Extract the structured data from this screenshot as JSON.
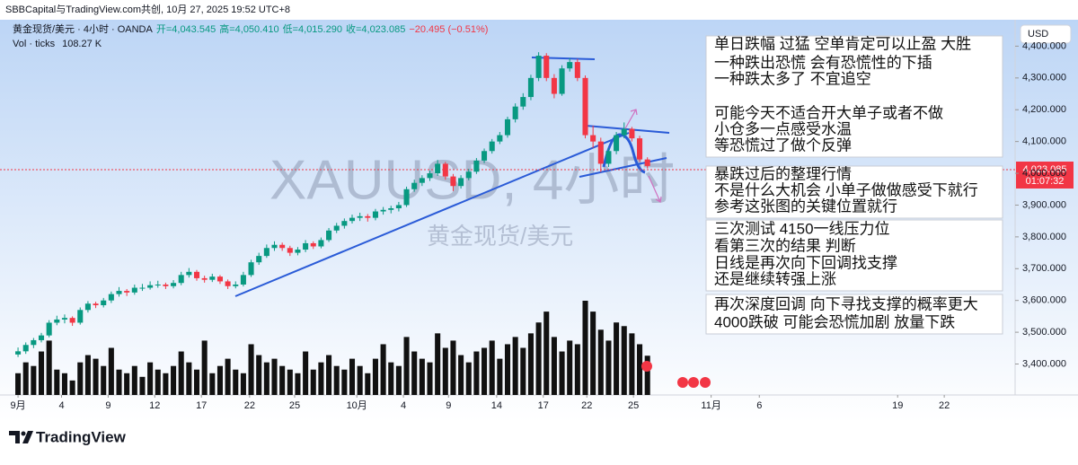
{
  "chart_data": {
    "type": "candlestick",
    "header": {
      "source": "SBBCapital与TradingView.com共创, 10月 27, 2025 19:52 UTC+8",
      "symbol": "黄金现货/美元 · 4小时 · OANDA",
      "open_label": "开=4,043.545",
      "high_label": "高=4,050.410",
      "low_label": "低=4,015.290",
      "close_label": "收=4,023.085",
      "change_label": "−20.495 (−0.51%)",
      "volume_name": "Vol · ticks",
      "volume_label": "108.27 K"
    },
    "watermark": "XAUUSD, 4小时",
    "watermark_sub": "黄金现货/美元",
    "currency": "USD",
    "last_price_label": "4,023.085",
    "countdown": "01:07:32",
    "brand": "TradingView",
    "up_color": "#089981",
    "down_color": "#f23645",
    "volume_color": "#111111",
    "grid": false,
    "x": [
      0,
      0.5,
      1,
      1.5,
      2,
      2.5,
      3,
      3.5,
      4,
      4.5,
      5,
      5.5,
      6,
      6.5,
      7,
      7.5,
      8,
      8.5,
      9,
      9.5,
      10,
      10.5,
      11,
      11.5,
      12,
      12.5,
      13,
      13.5,
      14,
      14.5,
      15,
      15.5,
      16,
      16.5,
      17,
      17.5,
      18,
      18.5,
      19,
      19.5,
      20,
      20.5,
      21,
      21.5,
      22,
      22.5,
      23,
      23.5,
      24,
      24.5,
      25,
      25.5,
      26,
      26.5,
      27,
      27.5,
      28,
      28.5,
      29,
      29.5,
      30,
      30.5,
      31,
      31.5,
      32,
      32.5,
      33,
      33.5,
      34,
      34.5,
      35,
      35.5,
      36,
      36.5,
      37,
      37.5,
      38,
      38.5,
      39,
      39.5,
      40,
      40.5
    ],
    "ohlc": [
      [
        3430,
        3452,
        3422,
        3440
      ],
      [
        3440,
        3468,
        3432,
        3460
      ],
      [
        3460,
        3482,
        3450,
        3475
      ],
      [
        3475,
        3498,
        3468,
        3490
      ],
      [
        3490,
        3538,
        3484,
        3530
      ],
      [
        3530,
        3552,
        3522,
        3540
      ],
      [
        3540,
        3556,
        3528,
        3545
      ],
      [
        3545,
        3550,
        3520,
        3530
      ],
      [
        3530,
        3578,
        3524,
        3570
      ],
      [
        3570,
        3598,
        3562,
        3590
      ],
      [
        3590,
        3596,
        3576,
        3585
      ],
      [
        3585,
        3608,
        3578,
        3600
      ],
      [
        3600,
        3628,
        3592,
        3620
      ],
      [
        3620,
        3642,
        3612,
        3630
      ],
      [
        3630,
        3636,
        3614,
        3625
      ],
      [
        3625,
        3650,
        3618,
        3640
      ],
      [
        3640,
        3652,
        3630,
        3640
      ],
      [
        3640,
        3660,
        3634,
        3648
      ],
      [
        3648,
        3662,
        3640,
        3650
      ],
      [
        3650,
        3656,
        3636,
        3645
      ],
      [
        3645,
        3664,
        3638,
        3655
      ],
      [
        3655,
        3690,
        3648,
        3680
      ],
      [
        3680,
        3702,
        3672,
        3690
      ],
      [
        3690,
        3696,
        3662,
        3670
      ],
      [
        3670,
        3678,
        3656,
        3665
      ],
      [
        3665,
        3684,
        3658,
        3675
      ],
      [
        3675,
        3680,
        3652,
        3660
      ],
      [
        3660,
        3666,
        3636,
        3645
      ],
      [
        3645,
        3660,
        3638,
        3650
      ],
      [
        3650,
        3690,
        3644,
        3680
      ],
      [
        3680,
        3728,
        3674,
        3720
      ],
      [
        3720,
        3750,
        3712,
        3740
      ],
      [
        3740,
        3776,
        3734,
        3765
      ],
      [
        3765,
        3786,
        3756,
        3775
      ],
      [
        3775,
        3782,
        3756,
        3765
      ],
      [
        3765,
        3772,
        3740,
        3750
      ],
      [
        3750,
        3768,
        3742,
        3760
      ],
      [
        3760,
        3790,
        3752,
        3780
      ],
      [
        3780,
        3786,
        3762,
        3770
      ],
      [
        3770,
        3798,
        3764,
        3790
      ],
      [
        3790,
        3828,
        3784,
        3820
      ],
      [
        3820,
        3844,
        3812,
        3835
      ],
      [
        3835,
        3858,
        3826,
        3850
      ],
      [
        3850,
        3870,
        3842,
        3860
      ],
      [
        3860,
        3876,
        3850,
        3865
      ],
      [
        3865,
        3872,
        3848,
        3860
      ],
      [
        3860,
        3888,
        3852,
        3880
      ],
      [
        3880,
        3894,
        3870,
        3885
      ],
      [
        3885,
        3898,
        3874,
        3890
      ],
      [
        3890,
        3910,
        3880,
        3900
      ],
      [
        3900,
        3958,
        3894,
        3950
      ],
      [
        3950,
        3980,
        3942,
        3970
      ],
      [
        3970,
        3994,
        3960,
        3985
      ],
      [
        3985,
        4008,
        3976,
        4000
      ],
      [
        4000,
        4042,
        3992,
        4030
      ],
      [
        4030,
        4036,
        3980,
        3990
      ],
      [
        3990,
        3998,
        3944,
        3960
      ],
      [
        3960,
        3994,
        3952,
        3985
      ],
      [
        3985,
        4014,
        3978,
        4005
      ],
      [
        4005,
        4048,
        3998,
        4040
      ],
      [
        4040,
        4078,
        4032,
        4070
      ],
      [
        4070,
        4108,
        4062,
        4100
      ],
      [
        4100,
        4130,
        4092,
        4120
      ],
      [
        4120,
        4178,
        4112,
        4170
      ],
      [
        4170,
        4220,
        4160,
        4210
      ],
      [
        4210,
        4252,
        4200,
        4240
      ],
      [
        4240,
        4310,
        4230,
        4300
      ],
      [
        4300,
        4381,
        4290,
        4370
      ],
      [
        4370,
        4378,
        4290,
        4300
      ],
      [
        4300,
        4312,
        4236,
        4250
      ],
      [
        4250,
        4340,
        4244,
        4330
      ],
      [
        4330,
        4362,
        4320,
        4350
      ],
      [
        4350,
        4360,
        4290,
        4300
      ],
      [
        4300,
        4308,
        4110,
        4120
      ],
      [
        4120,
        4150,
        4080,
        4100
      ],
      [
        4100,
        4112,
        4004,
        4030
      ],
      [
        4030,
        4080,
        4020,
        4070
      ],
      [
        4070,
        4130,
        4060,
        4120
      ],
      [
        4120,
        4160,
        4110,
        4140
      ],
      [
        4140,
        4146,
        4100,
        4110
      ],
      [
        4110,
        4118,
        4036,
        4043.58
      ],
      [
        4043.545,
        4050.41,
        4015.29,
        4023.085
      ]
    ],
    "volume": [
      60,
      90,
      80,
      120,
      150,
      70,
      60,
      40,
      90,
      110,
      100,
      80,
      130,
      70,
      60,
      80,
      50,
      90,
      70,
      60,
      80,
      120,
      90,
      70,
      150,
      60,
      80,
      100,
      70,
      60,
      140,
      110,
      90,
      100,
      80,
      70,
      60,
      120,
      70,
      90,
      110,
      80,
      70,
      100,
      80,
      60,
      100,
      140,
      90,
      80,
      160,
      120,
      100,
      90,
      170,
      130,
      150,
      110,
      90,
      120,
      130,
      150,
      100,
      140,
      160,
      130,
      170,
      200,
      230,
      160,
      120,
      150,
      140,
      260,
      230,
      180,
      150,
      200,
      190,
      170,
      140,
      108.27
    ],
    "xlim": [
      -1.16,
      64.16
    ],
    "ylim": [
      3302.6,
      4483.1
    ],
    "yticks": [
      {
        "value": 3400,
        "label": "3,400.000"
      },
      {
        "value": 3500,
        "label": "3,500.000"
      },
      {
        "value": 3600,
        "label": "3,600.000"
      },
      {
        "value": 3700,
        "label": "3,700.000"
      },
      {
        "value": 3800,
        "label": "3,800.000"
      },
      {
        "value": 3900,
        "label": "3,900.000"
      },
      {
        "value": 4000,
        "label": "4,000.000"
      },
      {
        "value": 4100,
        "label": "4,100.000"
      },
      {
        "value": 4200,
        "label": "4,200.000"
      },
      {
        "value": 4300,
        "label": "4,300.000"
      },
      {
        "value": 4400,
        "label": "4,400.000"
      }
    ],
    "xticks": [
      {
        "value": 0,
        "label": "9月"
      },
      {
        "value": 2.8,
        "label": "4"
      },
      {
        "value": 5.8,
        "label": "9"
      },
      {
        "value": 8.8,
        "label": "12"
      },
      {
        "value": 11.8,
        "label": "17"
      },
      {
        "value": 14.9,
        "label": "22"
      },
      {
        "value": 17.8,
        "label": "25"
      },
      {
        "value": 21.8,
        "label": "10月"
      },
      {
        "value": 24.8,
        "label": "4"
      },
      {
        "value": 27.7,
        "label": "9"
      },
      {
        "value": 30.8,
        "label": "14"
      },
      {
        "value": 33.8,
        "label": "17"
      },
      {
        "value": 36.6,
        "label": "22"
      },
      {
        "value": 39.6,
        "label": "25"
      },
      {
        "value": 44.6,
        "label": "11月"
      },
      {
        "value": 47.7,
        "label": "6"
      },
      {
        "value": 56.6,
        "label": "19"
      },
      {
        "value": 59.6,
        "label": "22"
      }
    ],
    "annotations": [
      [
        "单日跌幅 过猛  空单肯定可以止盈 大胜",
        "一种跌出恐慌 会有恐慌性的下插",
        "一种跌太多了 不宜追空",
        "可能今天不适合开大单子或者不做",
        "小仓多一点感受水温",
        "等恐慌过了做个反弹"
      ],
      [
        "暴跌过后的整理行情",
        "不是什么大机会  小单子做做感受下就行",
        "参考这张图的关键位置就行"
      ],
      [
        "三次测试  4150一线压力位",
        "看第三次的结果  判断",
        "日线是再次向下回调找支撑",
        "还是继续转强上涨"
      ],
      [
        "再次深度回调  向下寻找支撑的概率更大",
        "4000跌破 可能会恐慌加剧 放量下跌"
      ]
    ]
  }
}
